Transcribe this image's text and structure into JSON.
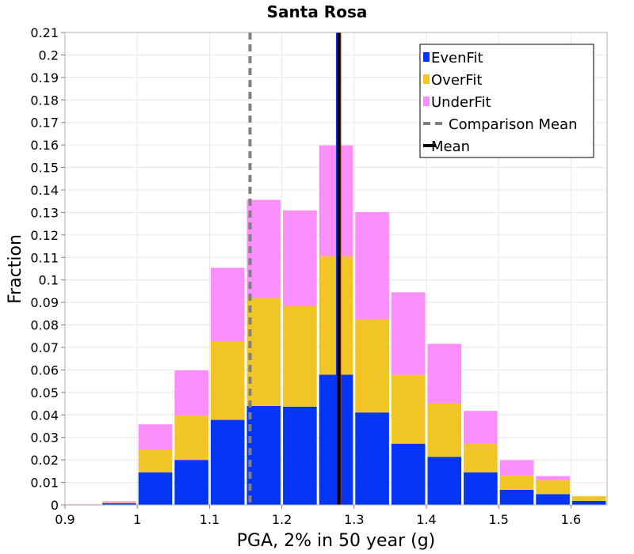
{
  "chart_data": {
    "type": "bar",
    "stacked": true,
    "title": "Santa Rosa",
    "xlabel": "PGA, 2% in 50 year (g)",
    "ylabel": "Fraction",
    "xlim": [
      0.9,
      1.65
    ],
    "ylim": [
      0,
      0.21
    ],
    "bin_width": 0.05,
    "bin_starts": [
      0.9,
      0.95,
      1.0,
      1.05,
      1.1,
      1.15,
      1.2,
      1.25,
      1.3,
      1.35,
      1.4,
      1.45,
      1.5,
      1.55,
      1.6
    ],
    "x_ticks": [
      "0.9",
      "1",
      "1.1",
      "1.2",
      "1.3",
      "1.4",
      "1.5",
      "1.6"
    ],
    "x_tick_values": [
      0.9,
      1.0,
      1.1,
      1.2,
      1.3,
      1.4,
      1.5,
      1.6
    ],
    "y_ticks": [
      "0",
      "0.01",
      "0.02",
      "0.03",
      "0.04",
      "0.05",
      "0.06",
      "0.07",
      "0.08",
      "0.09",
      "0.1",
      "0.11",
      "0.12",
      "0.13",
      "0.14",
      "0.15",
      "0.16",
      "0.17",
      "0.18",
      "0.19",
      "0.2",
      "0.21"
    ],
    "y_tick_values": [
      0,
      0.01,
      0.02,
      0.03,
      0.04,
      0.05,
      0.06,
      0.07,
      0.08,
      0.09,
      0.1,
      0.11,
      0.12,
      0.13,
      0.14,
      0.15,
      0.16,
      0.17,
      0.18,
      0.19,
      0.2,
      0.21
    ],
    "series": [
      {
        "name": "EvenFit",
        "color": "#0434f4",
        "values": [
          0.0,
          0.0007,
          0.0145,
          0.02,
          0.0378,
          0.044,
          0.0437,
          0.0579,
          0.0411,
          0.0272,
          0.0214,
          0.0145,
          0.0067,
          0.0048,
          0.0018
        ]
      },
      {
        "name": "OverFit",
        "color": "#f0c525",
        "values": [
          0.0,
          0.0002,
          0.0101,
          0.0197,
          0.0348,
          0.048,
          0.0446,
          0.0526,
          0.0414,
          0.0306,
          0.0237,
          0.0126,
          0.0066,
          0.0062,
          0.0021
        ]
      },
      {
        "name": "UnderFit",
        "color": "#fa8efa",
        "values": [
          0.0003,
          0.0007,
          0.0112,
          0.0201,
          0.0328,
          0.0436,
          0.0426,
          0.0493,
          0.0477,
          0.0367,
          0.0265,
          0.0147,
          0.0066,
          0.0018,
          0.0
        ]
      }
    ],
    "reference_lines": [
      {
        "name": "Comparison Mean",
        "x": 1.156,
        "color": "#808080",
        "style": "dashed"
      },
      {
        "name": "Mean",
        "x": 1.279,
        "color": "#000000",
        "style": "solid"
      },
      {
        "name": "EvenFit mean",
        "x": 1.276,
        "color": "#0434f4",
        "style": "solid"
      },
      {
        "name": "OverFit mean",
        "x": 1.281,
        "color": "#c83020",
        "style": "solid"
      }
    ],
    "legend": {
      "position": "top-right",
      "entries": [
        {
          "label": "EvenFit",
          "kind": "box",
          "color": "#0434f4"
        },
        {
          "label": "OverFit",
          "kind": "box",
          "color": "#f0c525"
        },
        {
          "label": "UnderFit",
          "kind": "box",
          "color": "#fa8efa"
        },
        {
          "label": "Comparison Mean",
          "kind": "dashed",
          "color": "#808080"
        },
        {
          "label": "Mean",
          "kind": "line",
          "color": "#000000"
        }
      ]
    },
    "grid": true
  }
}
